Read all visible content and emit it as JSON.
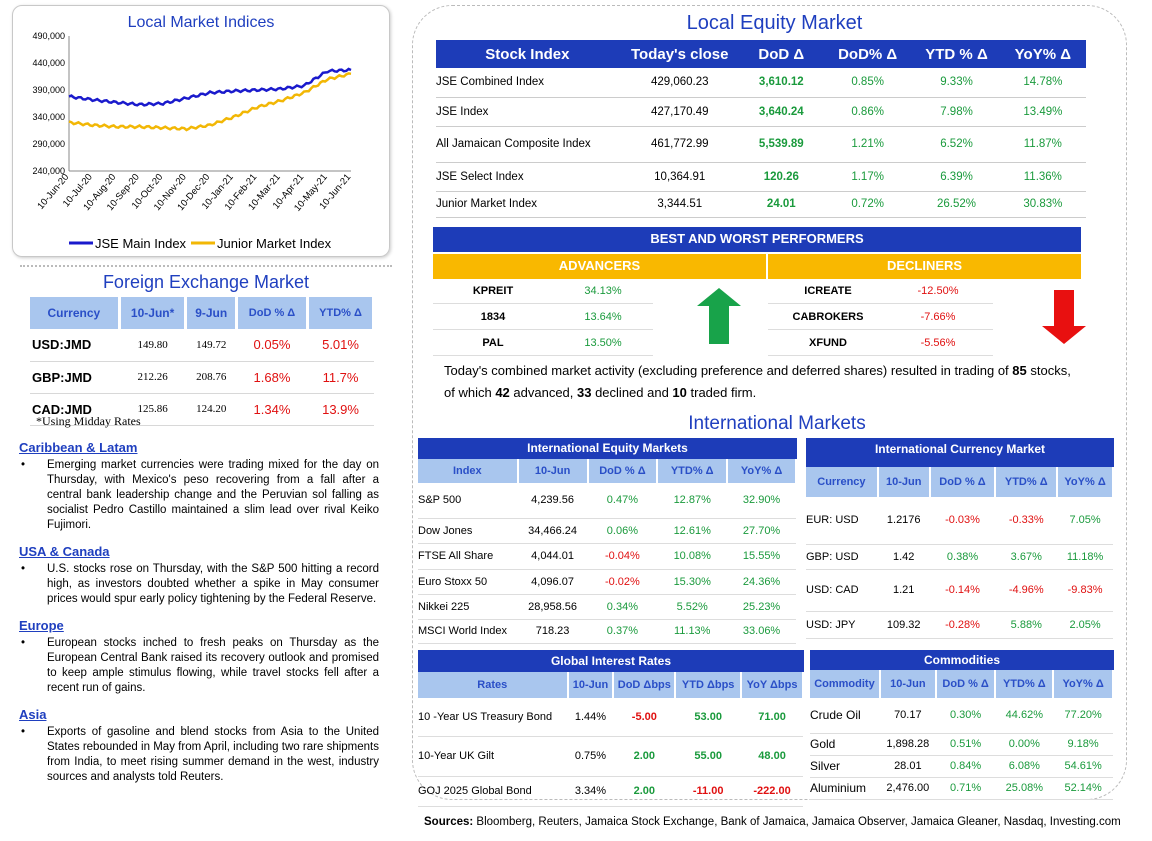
{
  "chart": {
    "title": "Local Market Indices",
    "y_ticks": [
      "490,000",
      "440,000",
      "390,000",
      "340,000",
      "290,000",
      "240,000"
    ],
    "x_ticks": [
      "10-Jun-20",
      "10-Jul-20",
      "10-Aug-20",
      "10-Sep-20",
      "10-Oct-20",
      "10-Nov-20",
      "10-Dec-20",
      "10-Jan-21",
      "10-Feb-21",
      "10-Mar-21",
      "10-Apr-21",
      "10-May-21",
      "10-Jun-21"
    ],
    "legend": [
      "JSE Main Index",
      "Junior Market Index"
    ],
    "colors": {
      "main": "#1a1acc",
      "junior": "#f2b705"
    }
  },
  "chart_data": {
    "type": "line",
    "title": "Local Market Indices",
    "x": [
      "10-Jun-20",
      "10-Jul-20",
      "10-Aug-20",
      "10-Sep-20",
      "10-Oct-20",
      "10-Nov-20",
      "10-Dec-20",
      "10-Jan-21",
      "10-Feb-21",
      "10-Mar-21",
      "10-Apr-21",
      "10-May-21",
      "10-Jun-21"
    ],
    "ylim": [
      240000,
      490000
    ],
    "series": [
      {
        "name": "JSE Main Index",
        "values": [
          378000,
          372000,
          367000,
          363000,
          365000,
          375000,
          385000,
          388000,
          390000,
          392000,
          398000,
          425000,
          427000
        ]
      },
      {
        "name": "Junior Market Index",
        "values": [
          330000,
          325000,
          322000,
          322000,
          320000,
          318000,
          325000,
          340000,
          358000,
          370000,
          385000,
          410000,
          420000
        ]
      }
    ]
  },
  "fx": {
    "title": "Foreign Exchange Market",
    "headers": [
      "Currency",
      "10-Jun*",
      "9-Jun",
      "DoD % Δ",
      "YTD% Δ"
    ],
    "rows": [
      [
        "USD:JMD",
        "149.80",
        "149.72",
        "0.05%",
        "5.01%"
      ],
      [
        "GBP:JMD",
        "212.26",
        "208.76",
        "1.68%",
        "11.7%"
      ],
      [
        "CAD:JMD",
        "125.86",
        "124.20",
        "1.34%",
        "13.9%"
      ]
    ],
    "note": "*Using Midday Rates"
  },
  "news": [
    {
      "title": "Caribbean & Latam",
      "text": "Emerging market currencies were trading mixed for the day on Thursday, with Mexico's peso recovering from a fall after a central bank leadership change and the Peruvian sol falling as socialist Pedro Castillo maintained a slim lead over rival Keiko Fujimori."
    },
    {
      "title": "USA & Canada",
      "text": "U.S. stocks rose on Thursday, with the S&P 500 hitting a record high, as investors doubted whether a spike in May consumer prices would spur early policy tightening by the Federal Reserve."
    },
    {
      "title": "Europe",
      "text": "European stocks inched to fresh peaks on Thursday as the European Central Bank raised its recovery outlook and promised to keep ample stimulus flowing, while travel stocks fell after a recent run of gains."
    },
    {
      "title": "Asia",
      "text": "Exports of gasoline and blend stocks from Asia to the United States rebounded in May from April, including two rare shipments from India, to meet rising summer demand in the west, industry sources and analysts told Reuters."
    }
  ],
  "equity": {
    "title": "Local Equity Market",
    "headers": [
      "Stock Index",
      "Today's close",
      "DoD  Δ",
      "DoD% Δ",
      "YTD % Δ",
      "YoY% Δ"
    ],
    "rows": [
      [
        "JSE Combined Index",
        "429,060.23",
        "3,610.12",
        "0.85%",
        "9.33%",
        "14.78%"
      ],
      [
        "JSE Index",
        "427,170.49",
        "3,640.24",
        "0.86%",
        "7.98%",
        "13.49%"
      ],
      [
        "All Jamaican Composite Index",
        "461,772.99",
        "5,539.89",
        "1.21%",
        "6.52%",
        "11.87%"
      ],
      [
        "JSE Select Index",
        "10,364.91",
        "120.26",
        "1.17%",
        "6.39%",
        "11.36%"
      ],
      [
        "Junior Market Index",
        "3,344.51",
        "24.01",
        "0.72%",
        "26.52%",
        "30.83%"
      ]
    ]
  },
  "performers": {
    "title": "BEST AND WORST PERFORMERS",
    "advancers_label": "ADVANCERS",
    "decliners_label": "DECLINERS",
    "advancers": [
      [
        "KPREIT",
        "34.13%"
      ],
      [
        "1834",
        "13.64%"
      ],
      [
        "PAL",
        "13.50%"
      ]
    ],
    "decliners": [
      [
        "ICREATE",
        "-12.50%"
      ],
      [
        "CABROKERS",
        "-7.66%"
      ],
      [
        "XFUND",
        "-5.56%"
      ]
    ]
  },
  "summary": {
    "part1": "Today's combined market activity (excluding preference and deferred shares) resulted in trading of ",
    "n1": "85",
    "part2": " stocks, of which ",
    "n2": "42",
    "part3": " advanced, ",
    "n3": "33",
    "part4": " declined and ",
    "n4": "10",
    "part5": " traded firm."
  },
  "intl": {
    "title": "International Markets",
    "equity": {
      "title": "International Equity Markets",
      "headers": [
        "Index",
        "10-Jun",
        "DoD % Δ",
        "YTD% Δ",
        "YoY% Δ"
      ],
      "rows": [
        [
          "S&P 500",
          "4,239.56",
          "0.47%",
          "12.87%",
          "32.90%"
        ],
        [
          "Dow Jones",
          "34,466.24",
          "0.06%",
          "12.61%",
          "27.70%"
        ],
        [
          "FTSE All Share",
          "4,044.01",
          "-0.04%",
          "10.08%",
          "15.55%"
        ],
        [
          "Euro Stoxx 50",
          "4,096.07",
          "-0.02%",
          "15.30%",
          "24.36%"
        ],
        [
          "Nikkei 225",
          "28,958.56",
          "0.34%",
          "5.52%",
          "25.23%"
        ],
        [
          "MSCI World Index",
          "718.23",
          "0.37%",
          "11.13%",
          "33.06%"
        ]
      ]
    },
    "currency": {
      "title": "International Currency Market",
      "headers": [
        "Currency",
        "10-Jun",
        "DoD % Δ",
        "YTD% Δ",
        "YoY% Δ"
      ],
      "rows": [
        [
          "EUR: USD",
          "1.2176",
          "-0.03%",
          "-0.33%",
          "7.05%"
        ],
        [
          "GBP: USD",
          "1.42",
          "0.38%",
          "3.67%",
          "11.18%"
        ],
        [
          "USD: CAD",
          "1.21",
          "-0.14%",
          "-4.96%",
          "-9.83%"
        ],
        [
          "USD: JPY",
          "109.32",
          "-0.28%",
          "5.88%",
          "2.05%"
        ]
      ]
    },
    "rates": {
      "title": "Global Interest Rates",
      "headers": [
        "Rates",
        "10-Jun",
        "DoD Δbps",
        "YTD Δbps",
        "YoY Δbps"
      ],
      "rows": [
        [
          "10 -Year US Treasury Bond",
          "1.44%",
          "-5.00",
          "53.00",
          "71.00"
        ],
        [
          "10-Year UK Gilt",
          "0.75%",
          "2.00",
          "55.00",
          "48.00"
        ],
        [
          "GOJ 2025 Global Bond",
          "3.34%",
          "2.00",
          "-11.00",
          "-222.00"
        ]
      ]
    },
    "commodities": {
      "title": "Commodities",
      "headers": [
        "Commodity",
        "10-Jun",
        "DoD % Δ",
        "YTD% Δ",
        "YoY% Δ"
      ],
      "rows": [
        [
          "Crude Oil",
          "70.17",
          "0.30%",
          "44.62%",
          "77.20%"
        ],
        [
          "Gold",
          "1,898.28",
          "0.51%",
          "0.00%",
          "9.18%"
        ],
        [
          "Silver",
          "28.01",
          "0.84%",
          "6.08%",
          "54.61%"
        ],
        [
          "Aluminium",
          "2,476.00",
          "0.71%",
          "25.08%",
          "52.14%"
        ]
      ]
    }
  },
  "sources": {
    "label": "Sources:",
    "text": " Bloomberg, Reuters, Jamaica Stock Exchange, Bank of Jamaica, Jamaica Observer, Jamaica Gleaner, Nasdaq, Investing.com"
  }
}
